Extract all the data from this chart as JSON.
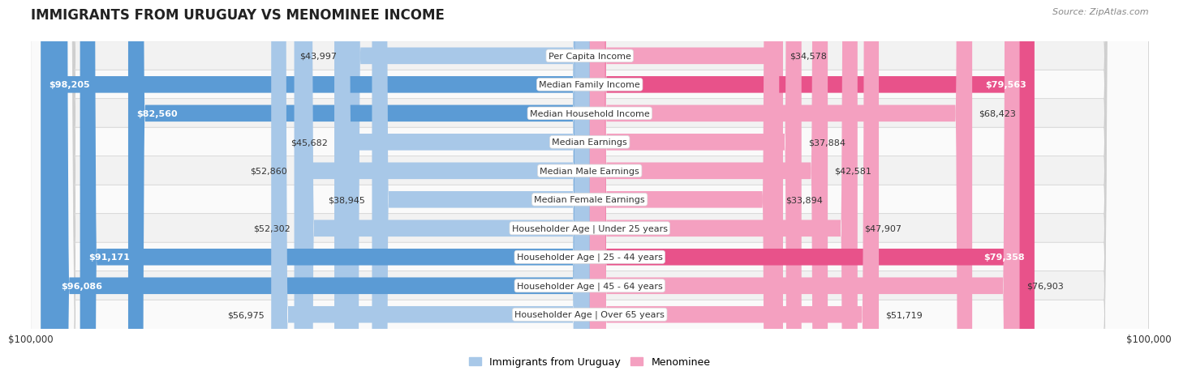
{
  "title": "IMMIGRANTS FROM URUGUAY VS MENOMINEE INCOME",
  "source": "Source: ZipAtlas.com",
  "categories": [
    "Per Capita Income",
    "Median Family Income",
    "Median Household Income",
    "Median Earnings",
    "Median Male Earnings",
    "Median Female Earnings",
    "Householder Age | Under 25 years",
    "Householder Age | 25 - 44 years",
    "Householder Age | 45 - 64 years",
    "Householder Age | Over 65 years"
  ],
  "uruguay_values": [
    43997,
    98205,
    82560,
    45682,
    52860,
    38945,
    52302,
    91171,
    96086,
    56975
  ],
  "menominee_values": [
    34578,
    79563,
    68423,
    37884,
    42581,
    33894,
    47907,
    79358,
    76903,
    51719
  ],
  "max_value": 100000,
  "uruguay_color_light": "#a8c8e8",
  "uruguay_color_dark": "#5b9bd5",
  "menominee_color_light": "#f4a0c0",
  "menominee_color_dark": "#e8528a",
  "bar_height": 0.58,
  "row_bg_even": "#f2f2f2",
  "row_bg_odd": "#fafafa",
  "label_fontsize": 8.0,
  "title_fontsize": 12,
  "source_fontsize": 8,
  "legend_fontsize": 9,
  "fig_bg": "#ffffff",
  "dark_text_threshold": 0.78
}
